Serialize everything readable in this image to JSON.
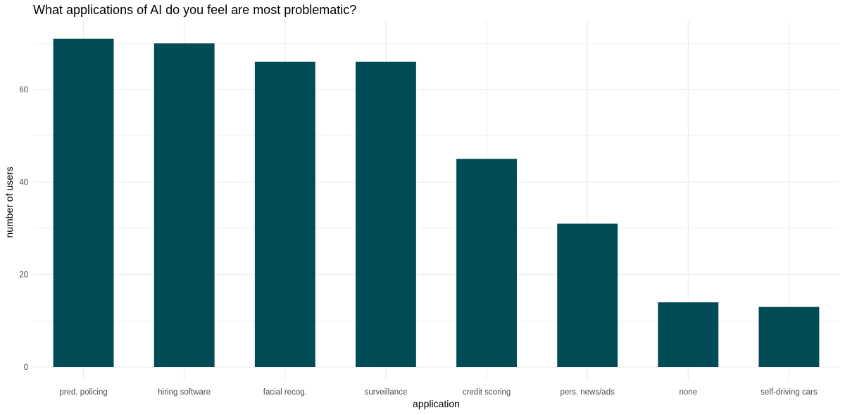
{
  "chart_data": {
    "type": "bar",
    "title": "What applications of AI do you feel are most problematic?",
    "xlabel": "application",
    "ylabel": "number of users",
    "categories": [
      "pred. policing",
      "hiring software",
      "facial recog.",
      "surveillance",
      "credit scoring",
      "pers. news/ads",
      "none",
      "self-driving cars"
    ],
    "values": [
      71,
      70,
      66,
      66,
      45,
      31,
      14,
      13
    ],
    "ylim": [
      0,
      74.5
    ],
    "yticks": [
      0,
      20,
      40,
      60
    ],
    "grid": true,
    "legend": "none",
    "bar_color": "#004b55",
    "grid_color": "#ebebeb"
  }
}
